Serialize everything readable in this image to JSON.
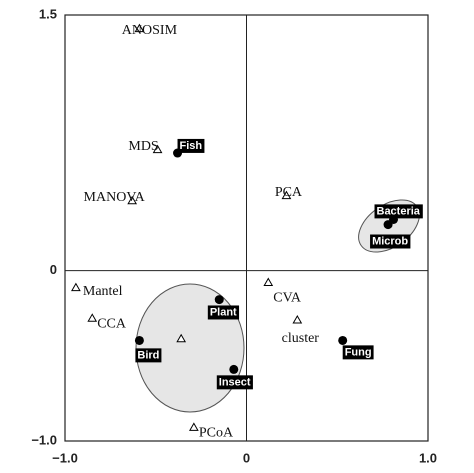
{
  "chart_data": {
    "type": "scatter",
    "xlim": [
      -1,
      1
    ],
    "ylim": [
      -1,
      1.5
    ],
    "xticks": [
      {
        "value": -1,
        "label": "−1.0"
      },
      0,
      {
        "value": 1,
        "label": "1.0"
      }
    ],
    "yticks": [
      {
        "value": -1,
        "label": "−1.0"
      },
      0,
      1.5
    ],
    "series": [
      {
        "marker": "triangle",
        "color": "#000000",
        "labels": [
          "ANOSIM",
          "MDS",
          "MANOVA",
          "PCA",
          "Mantel",
          "CCA",
          "CVA",
          "cluster",
          "PCoA",
          null
        ],
        "x": [
          -0.59,
          -0.49,
          -0.63,
          0.22,
          -0.94,
          -0.85,
          0.12,
          0.28,
          -0.29,
          -0.36
        ],
        "values": [
          1.42,
          0.71,
          0.41,
          0.44,
          -0.1,
          -0.28,
          -0.07,
          -0.29,
          -0.92,
          -0.4
        ]
      },
      {
        "marker": "circle",
        "color": "#000000",
        "labels": [
          "Fish",
          "Bacteria",
          "Microb",
          "Plant",
          "Bird",
          "Insect",
          "Fung"
        ],
        "x": [
          -0.38,
          0.81,
          0.78,
          -0.15,
          -0.59,
          -0.07,
          0.53
        ],
        "values": [
          0.69,
          0.3,
          0.27,
          -0.17,
          -0.41,
          -0.58,
          -0.41
        ]
      }
    ]
  }
}
